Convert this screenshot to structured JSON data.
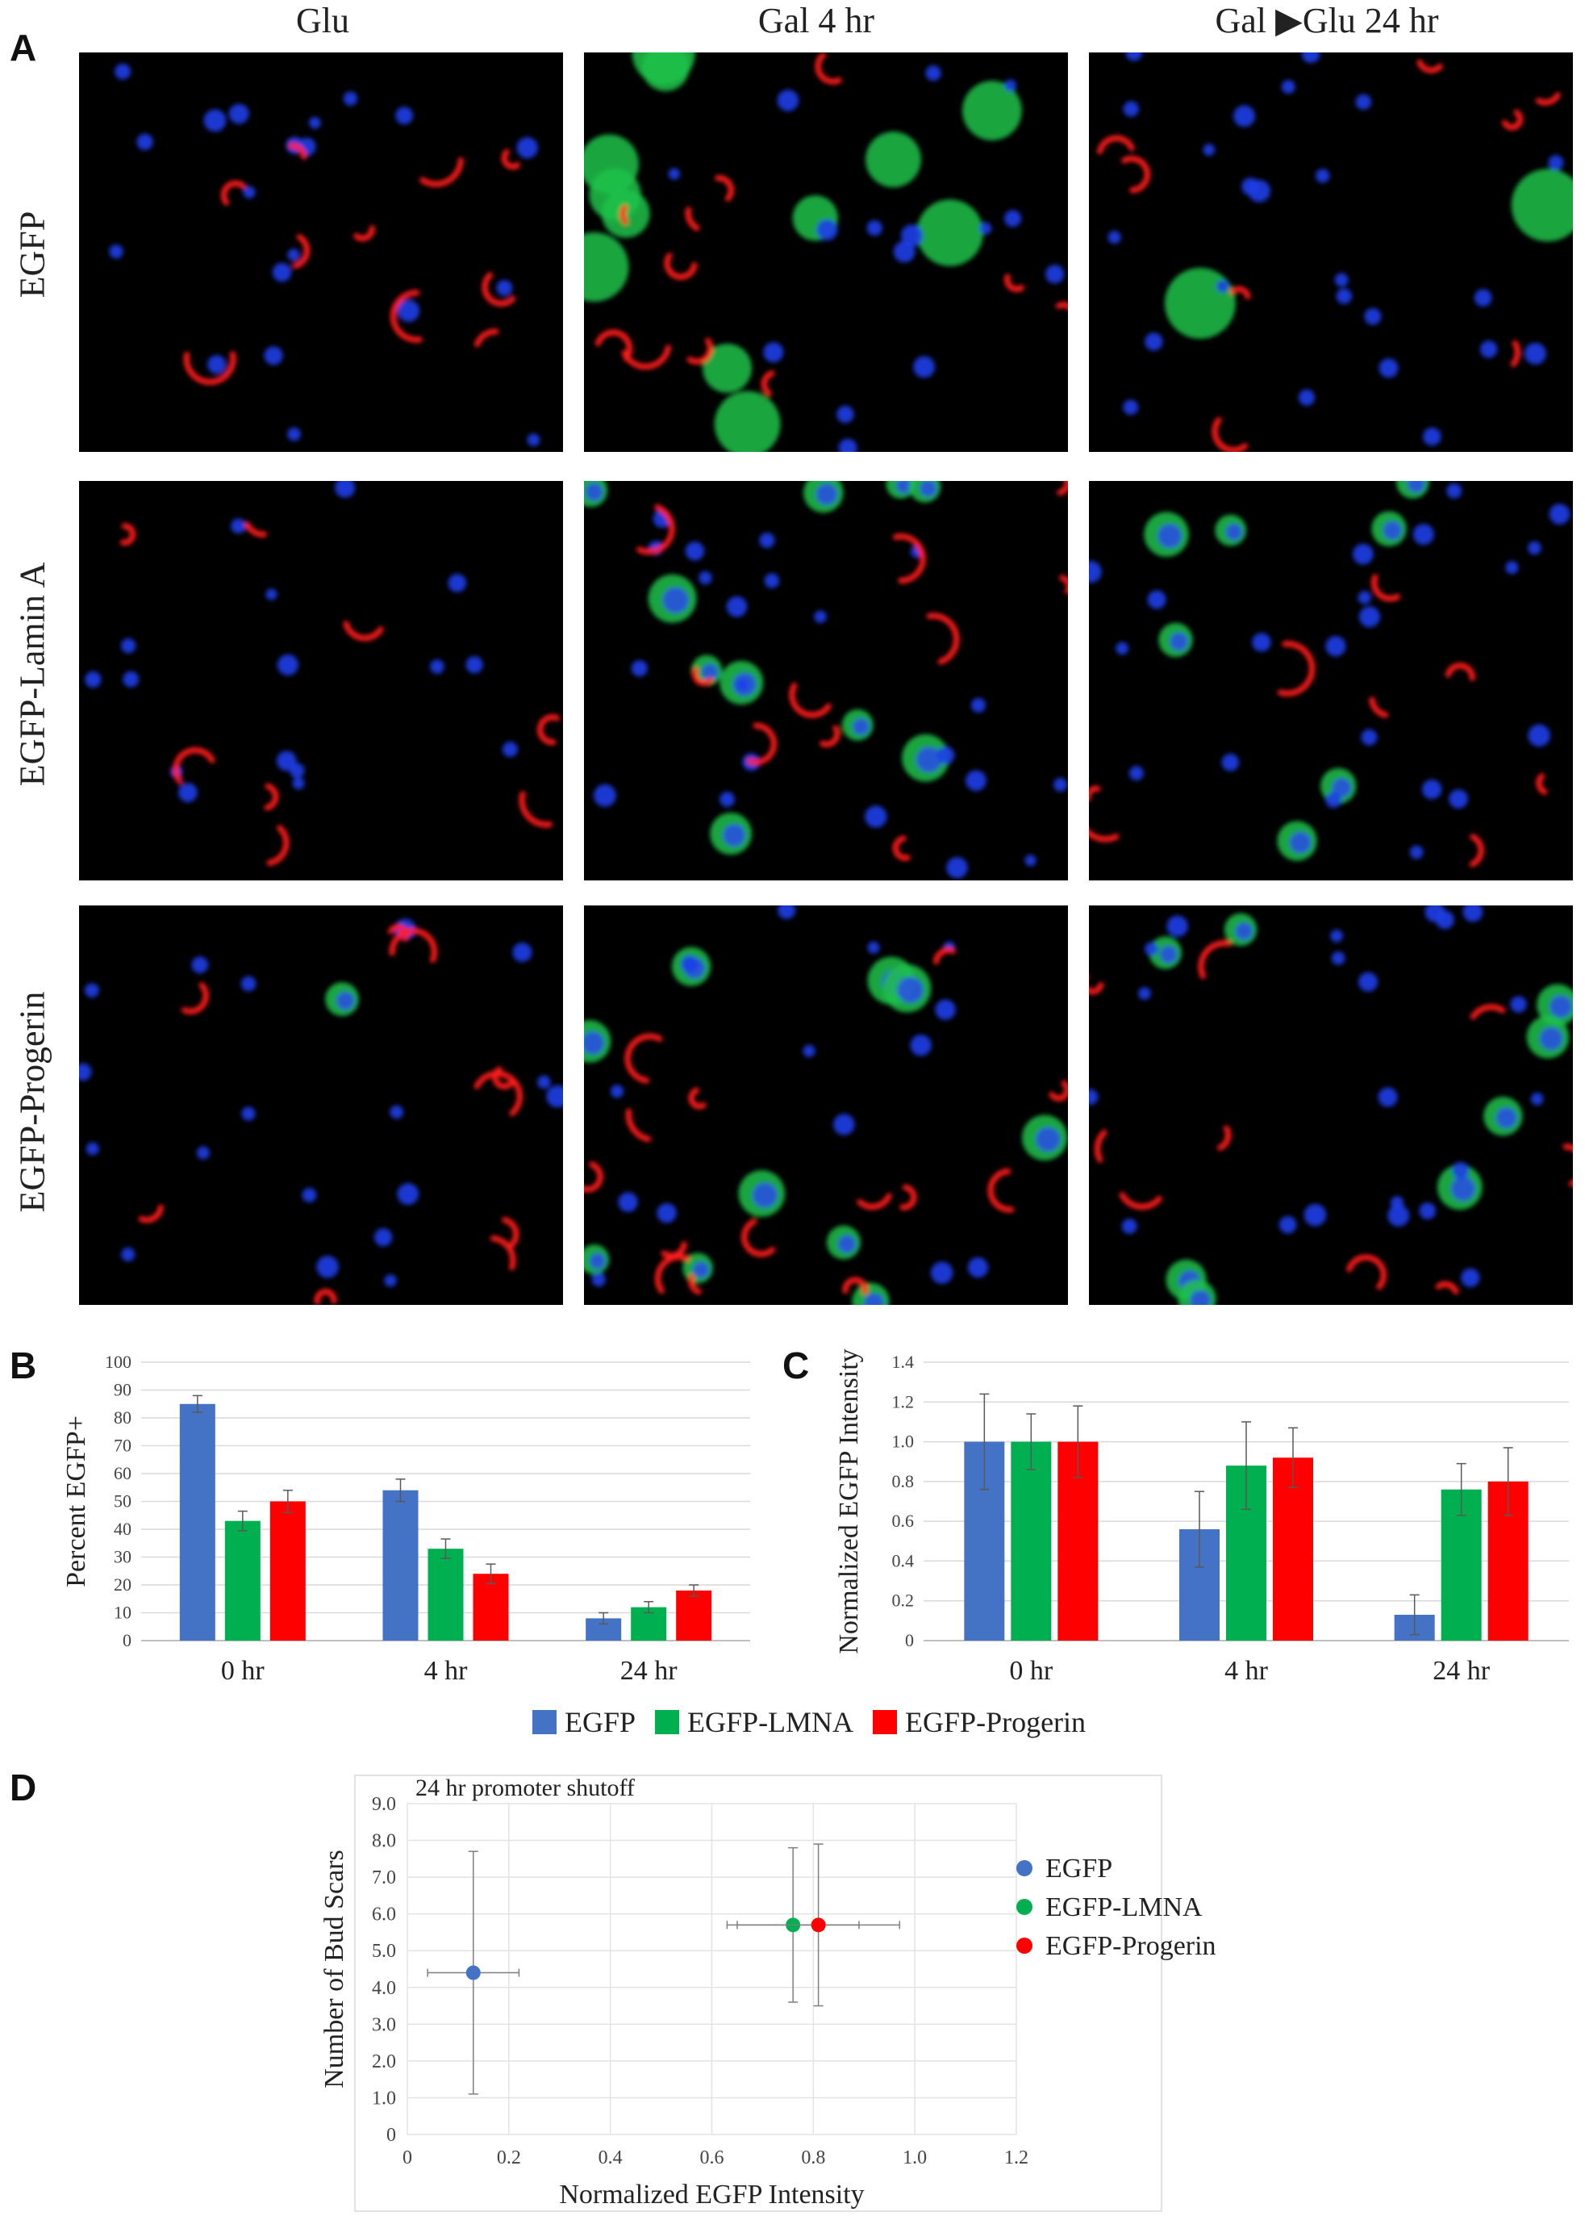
{
  "figure": {
    "panel_letters": [
      "A",
      "B",
      "C",
      "D"
    ],
    "column_titles": [
      "Glu",
      "Gal 4 hr",
      "Gal ▶Glu 24 hr"
    ],
    "row_titles": [
      "EGFP",
      "EGFP-Lamin A",
      "EGFP-Progerin"
    ],
    "micrograph_names": [
      "micrograph-egfp-glu",
      "micrograph-egfp-gal4",
      "micrograph-egfp-galglu24",
      "micrograph-lamina-glu",
      "micrograph-lamina-gal4",
      "micrograph-lamina-galglu24",
      "micrograph-progerin-glu",
      "micrograph-progerin-gal4",
      "micrograph-progerin-galglu24"
    ],
    "colors": {
      "EGFP": "#4472C4",
      "EGFP-LMNA": "#00B050",
      "EGFP-Progerin": "#FF0000"
    }
  },
  "legend_bc": {
    "items": [
      {
        "label": "EGFP",
        "color": "#4472C4"
      },
      {
        "label": "EGFP-LMNA",
        "color": "#00B050"
      },
      {
        "label": "EGFP-Progerin",
        "color": "#FF0000"
      }
    ]
  },
  "legend_d": {
    "items": [
      {
        "label": "EGFP",
        "color": "#4472C4"
      },
      {
        "label": "EGFP-LMNA",
        "color": "#00B050"
      },
      {
        "label": "EGFP-Progerin",
        "color": "#FF0000"
      }
    ]
  },
  "chart_data": [
    {
      "id": "B",
      "type": "bar",
      "ylabel": "Percent EGFP+",
      "xlabel": "",
      "categories": [
        "0 hr",
        "4 hr",
        "24 hr"
      ],
      "ylim": [
        0,
        100
      ],
      "yticks": [
        0,
        10,
        20,
        30,
        40,
        50,
        60,
        70,
        80,
        90,
        100
      ],
      "grid": true,
      "series": [
        {
          "name": "EGFP",
          "values": [
            85,
            54,
            8
          ],
          "errors": [
            3,
            4,
            2
          ]
        },
        {
          "name": "EGFP-LMNA",
          "values": [
            43,
            33,
            12
          ],
          "errors": [
            3.5,
            3.5,
            2
          ]
        },
        {
          "name": "EGFP-Progerin",
          "values": [
            50,
            24,
            18
          ],
          "errors": [
            4,
            3.5,
            2
          ]
        }
      ]
    },
    {
      "id": "C",
      "type": "bar",
      "ylabel": "Normalized EGFP Intensity",
      "xlabel": "",
      "categories": [
        "0 hr",
        "4 hr",
        "24 hr"
      ],
      "ylim": [
        0,
        1.4
      ],
      "yticks": [
        "0",
        "0.2",
        "0.4",
        "0.6",
        "0.8",
        "1.0",
        "1.2",
        "1.4"
      ],
      "grid": true,
      "series": [
        {
          "name": "EGFP",
          "values": [
            1.0,
            0.56,
            0.13
          ],
          "errors": [
            0.24,
            0.19,
            0.1
          ]
        },
        {
          "name": "EGFP-LMNA",
          "values": [
            1.0,
            0.88,
            0.76
          ],
          "errors": [
            0.14,
            0.22,
            0.13
          ]
        },
        {
          "name": "EGFP-Progerin",
          "values": [
            1.0,
            0.92,
            0.8
          ],
          "errors": [
            0.18,
            0.15,
            0.17
          ]
        }
      ]
    },
    {
      "id": "D",
      "type": "scatter",
      "title": "24 hr promoter shutoff",
      "xlabel": "Normalized EGFP Intensity",
      "ylabel": "Number of Bud Scars",
      "xlim": [
        0,
        1.2
      ],
      "ylim": [
        0,
        9.0
      ],
      "xticks": [
        "0",
        "0.2",
        "0.4",
        "0.6",
        "0.8",
        "1.0",
        "1.2"
      ],
      "yticks": [
        "0",
        "1.0",
        "2.0",
        "3.0",
        "4.0",
        "5.0",
        "6.0",
        "7.0",
        "8.0",
        "9.0"
      ],
      "grid": true,
      "legend": "right",
      "series": [
        {
          "name": "EGFP",
          "x": 0.13,
          "y": 4.4,
          "xerr": 0.09,
          "yerr": 3.3
        },
        {
          "name": "EGFP-LMNA",
          "x": 0.76,
          "y": 5.7,
          "xerr": 0.13,
          "yerr": 2.1
        },
        {
          "name": "EGFP-Progerin",
          "x": 0.81,
          "y": 5.7,
          "xerr": 0.16,
          "yerr": 2.2
        }
      ]
    }
  ]
}
